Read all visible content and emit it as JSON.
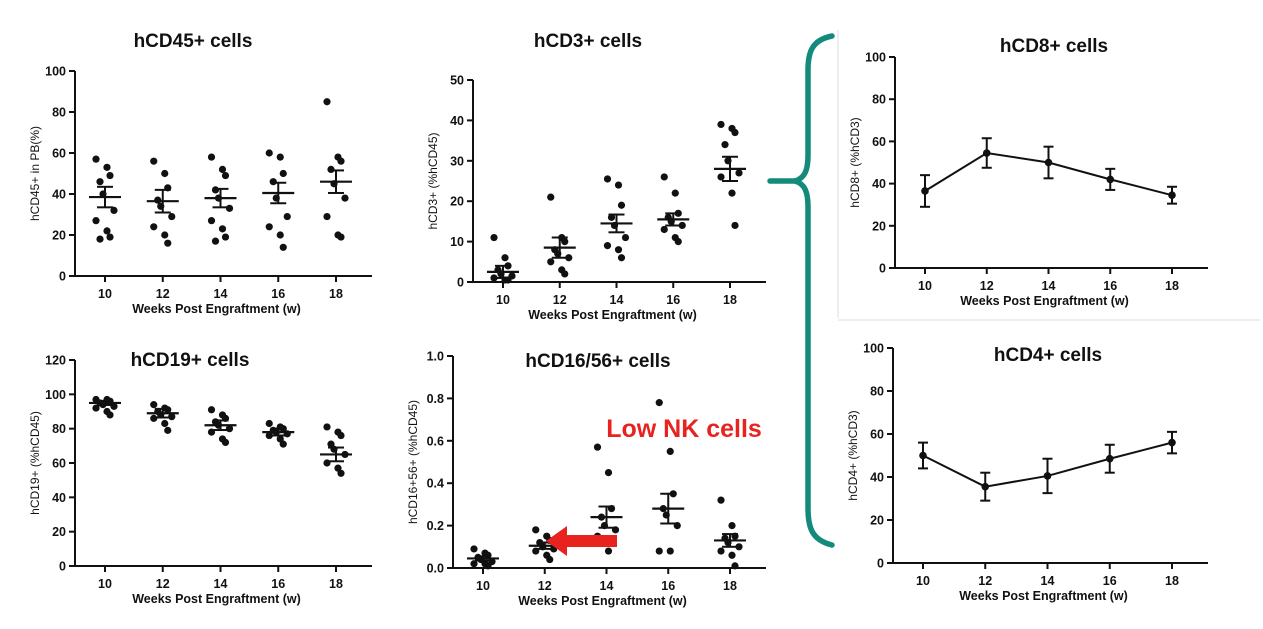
{
  "colors": {
    "ink": "#111111",
    "annotation": "#e8231f",
    "brace": "#138a7c"
  },
  "annotation": {
    "text": "Low NK cells"
  },
  "chart_data": [
    {
      "type": "scatter",
      "title": "hCD45+ cells",
      "ylabel": "hCD45+ in PB(%)",
      "xlabel": "Weeks  Post Engraftment (w)",
      "categories": [
        "10",
        "12",
        "14",
        "16",
        "18"
      ],
      "ylim": [
        0,
        100
      ],
      "yticks": [
        "0",
        "20",
        "40",
        "60",
        "80",
        "100"
      ],
      "means": [
        38.5,
        36.5,
        38,
        40.5,
        46
      ],
      "errors": [
        5,
        5.5,
        4.5,
        5,
        5.5
      ],
      "points": [
        [
          57,
          53,
          49,
          46,
          40,
          32,
          27,
          22,
          19,
          18
        ],
        [
          56,
          50,
          43,
          37,
          34,
          29,
          24,
          20,
          16
        ],
        [
          58,
          52,
          49,
          42,
          38,
          33,
          27,
          23,
          19,
          17
        ],
        [
          60,
          58,
          50,
          46,
          38,
          29,
          24,
          20,
          14
        ],
        [
          85,
          58,
          56,
          52,
          45,
          38,
          29,
          20,
          19
        ]
      ]
    },
    {
      "type": "scatter",
      "title": "hCD3+ cells",
      "ylabel": "hCD3+ (%hCD45)",
      "xlabel": "Weeks Post Engraftment (w)",
      "categories": [
        "10",
        "12",
        "14",
        "16",
        "18"
      ],
      "ylim": [
        0,
        50
      ],
      "yticks": [
        "0",
        "10",
        "20",
        "30",
        "40",
        "50"
      ],
      "means": [
        2.5,
        8.5,
        14.5,
        15.5,
        28
      ],
      "errors": [
        1.5,
        2.5,
        2.2,
        1.5,
        3
      ],
      "points": [
        [
          11,
          6,
          4,
          3,
          2,
          1.5,
          1,
          0.5,
          0.5
        ],
        [
          21,
          11,
          10,
          8,
          7,
          6,
          5,
          3,
          2
        ],
        [
          25.5,
          24,
          19,
          16,
          14,
          11,
          9,
          8,
          6
        ],
        [
          26,
          22,
          17,
          16,
          15,
          14,
          13,
          11,
          10
        ],
        [
          39,
          38,
          37,
          34,
          30,
          27,
          26,
          22,
          14
        ]
      ]
    },
    {
      "type": "scatter",
      "title": "hCD19+ cells",
      "ylabel": "hCD19+ (%hCD45)",
      "xlabel": "Weeks Post Engraftment (w)",
      "categories": [
        "10",
        "12",
        "14",
        "16",
        "18"
      ],
      "ylim": [
        0,
        120
      ],
      "yticks": [
        "0",
        "20",
        "40",
        "60",
        "80",
        "100",
        "120"
      ],
      "means": [
        95,
        89,
        82,
        78,
        65
      ],
      "errors": [
        1.2,
        2.5,
        2.8,
        2,
        4
      ],
      "points": [
        [
          97,
          97,
          96,
          95,
          94,
          93,
          92,
          90,
          88
        ],
        [
          94,
          92,
          91,
          90,
          88,
          87,
          86,
          83,
          79
        ],
        [
          91,
          88,
          86,
          84,
          82,
          80,
          78,
          74,
          72
        ],
        [
          83,
          81,
          80,
          79,
          78,
          77,
          76,
          74,
          71
        ],
        [
          81,
          78,
          76,
          71,
          68,
          65,
          60,
          57,
          54
        ]
      ]
    },
    {
      "type": "scatter",
      "title": "hCD16/56+ cells",
      "ylabel": "hCD16+56+ (%hCD45)",
      "xlabel": "Weeks Post Engraftment (w)",
      "categories": [
        "10",
        "12",
        "14",
        "16",
        "18"
      ],
      "ylim": [
        0,
        1.0
      ],
      "yticks": [
        "0.0",
        "0.2",
        "0.4",
        "0.6",
        "0.8",
        "1.0"
      ],
      "means": [
        0.045,
        0.105,
        0.24,
        0.28,
        0.13
      ],
      "errors": [
        0.01,
        0.015,
        0.05,
        0.07,
        0.03
      ],
      "points": [
        [
          0.09,
          0.07,
          0.06,
          0.05,
          0.04,
          0.03,
          0.02,
          0.02,
          0.01
        ],
        [
          0.18,
          0.15,
          0.13,
          0.12,
          0.1,
          0.09,
          0.08,
          0.06,
          0.04
        ],
        [
          0.57,
          0.45,
          0.28,
          0.24,
          0.2,
          0.18,
          0.15,
          0.08
        ],
        [
          0.78,
          0.55,
          0.35,
          0.28,
          0.25,
          0.2,
          0.08,
          0.08
        ],
        [
          0.32,
          0.2,
          0.15,
          0.14,
          0.12,
          0.1,
          0.08,
          0.06,
          0.01
        ]
      ]
    },
    {
      "type": "line",
      "title": "hCD8+ cells",
      "ylabel": "hCD8+ (%hCD3)",
      "xlabel": "Weeks Post Engraftment (w)",
      "categories": [
        "10",
        "12",
        "14",
        "16",
        "18"
      ],
      "ylim": [
        0,
        100
      ],
      "yticks": [
        "0",
        "20",
        "40",
        "60",
        "80",
        "100"
      ],
      "values": [
        36.5,
        54.5,
        50,
        42,
        34.5
      ],
      "errors": [
        7.5,
        7,
        7.5,
        5,
        4
      ]
    },
    {
      "type": "line",
      "title": "hCD4+ cells",
      "ylabel": "hCD4+ (%hCD3)",
      "xlabel": "Weeks Post Engraftment (w)",
      "categories": [
        "10",
        "12",
        "14",
        "16",
        "18"
      ],
      "ylim": [
        0,
        100
      ],
      "yticks": [
        "0",
        "20",
        "40",
        "60",
        "80",
        "100"
      ],
      "values": [
        50,
        35.5,
        40.5,
        48.5,
        56
      ],
      "errors": [
        6,
        6.5,
        8,
        6.5,
        5
      ]
    }
  ]
}
